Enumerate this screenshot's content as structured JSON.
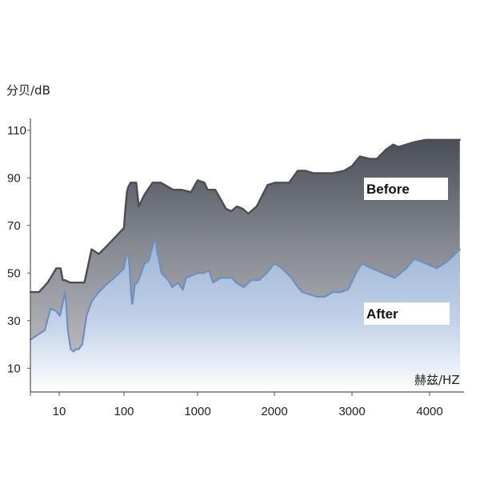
{
  "chart_data": {
    "type": "area",
    "ylabel": "分贝/dB",
    "xlabel": "赫兹/HZ",
    "ylim": [
      0,
      115
    ],
    "yticks": [
      10,
      30,
      50,
      70,
      90,
      110
    ],
    "xlim": [
      0,
      4500
    ],
    "xticks": [
      {
        "value": 10,
        "label": "10"
      },
      {
        "value": 100,
        "label": "100"
      },
      {
        "value": 1000,
        "label": "1000"
      },
      {
        "value": 2000,
        "label": "2000"
      },
      {
        "value": 3000,
        "label": "3000"
      },
      {
        "value": 4000,
        "label": "4000"
      }
    ],
    "grid": false,
    "series": [
      {
        "name": "Before",
        "label_placement": "upper-right",
        "points": [
          [
            0,
            42
          ],
          [
            3,
            42
          ],
          [
            6,
            46
          ],
          [
            9,
            52
          ],
          [
            12,
            52
          ],
          [
            15,
            47
          ],
          [
            18,
            47
          ],
          [
            25,
            46
          ],
          [
            40,
            46
          ],
          [
            45,
            46
          ],
          [
            55,
            60
          ],
          [
            65,
            58
          ],
          [
            75,
            61
          ],
          [
            100,
            69
          ],
          [
            110,
            74
          ],
          [
            120,
            78
          ],
          [
            135,
            84
          ],
          [
            150,
            86
          ],
          [
            180,
            88
          ],
          [
            250,
            88
          ],
          [
            280,
            78
          ],
          [
            350,
            83
          ],
          [
            450,
            88
          ],
          [
            550,
            88
          ],
          [
            700,
            85
          ],
          [
            800,
            85
          ],
          [
            920,
            84
          ],
          [
            1000,
            89
          ],
          [
            1090,
            88
          ],
          [
            1130,
            85
          ],
          [
            1230,
            85
          ],
          [
            1370,
            77
          ],
          [
            1440,
            76
          ],
          [
            1510,
            78
          ],
          [
            1590,
            77
          ],
          [
            1660,
            75
          ],
          [
            1770,
            78
          ],
          [
            1910,
            87
          ],
          [
            2010,
            88
          ],
          [
            2190,
            88
          ],
          [
            2300,
            93
          ],
          [
            2400,
            93
          ],
          [
            2500,
            92
          ],
          [
            2600,
            92
          ],
          [
            2750,
            92
          ],
          [
            2900,
            93
          ],
          [
            3000,
            95
          ],
          [
            3100,
            99
          ],
          [
            3230,
            98
          ],
          [
            3320,
            98
          ],
          [
            3440,
            102
          ],
          [
            3530,
            104
          ],
          [
            3600,
            103
          ],
          [
            3700,
            104
          ],
          [
            3800,
            105
          ],
          [
            3950,
            106
          ],
          [
            4100,
            106
          ],
          [
            4250,
            106
          ],
          [
            4420,
            106
          ]
        ]
      },
      {
        "name": "After",
        "label_placement": "lower-right",
        "points": [
          [
            0,
            22
          ],
          [
            5,
            26
          ],
          [
            7,
            35
          ],
          [
            9,
            34
          ],
          [
            11,
            32
          ],
          [
            14,
            36
          ],
          [
            18,
            42
          ],
          [
            20,
            36
          ],
          [
            22,
            26
          ],
          [
            26,
            18
          ],
          [
            30,
            17
          ],
          [
            33,
            18
          ],
          [
            37,
            18
          ],
          [
            42,
            20
          ],
          [
            48,
            32
          ],
          [
            55,
            38
          ],
          [
            65,
            42
          ],
          [
            75,
            45
          ],
          [
            90,
            49
          ],
          [
            100,
            52
          ],
          [
            115,
            55
          ],
          [
            130,
            58
          ],
          [
            150,
            58
          ],
          [
            165,
            54
          ],
          [
            175,
            48
          ],
          [
            190,
            40
          ],
          [
            200,
            37
          ],
          [
            215,
            40
          ],
          [
            230,
            45
          ],
          [
            260,
            46
          ],
          [
            290,
            48
          ],
          [
            330,
            52
          ],
          [
            350,
            54
          ],
          [
            400,
            55
          ],
          [
            440,
            60
          ],
          [
            480,
            65
          ],
          [
            510,
            58
          ],
          [
            560,
            50
          ],
          [
            640,
            47
          ],
          [
            690,
            44
          ],
          [
            760,
            46
          ],
          [
            820,
            43
          ],
          [
            860,
            48
          ],
          [
            930,
            49
          ],
          [
            1000,
            50
          ],
          [
            1080,
            50
          ],
          [
            1150,
            51
          ],
          [
            1200,
            46
          ],
          [
            1300,
            48
          ],
          [
            1350,
            48
          ],
          [
            1450,
            48
          ],
          [
            1500,
            46
          ],
          [
            1600,
            44
          ],
          [
            1700,
            47
          ],
          [
            1800,
            47
          ],
          [
            1900,
            50
          ],
          [
            2000,
            54
          ],
          [
            2100,
            52
          ],
          [
            2220,
            48
          ],
          [
            2280,
            45
          ],
          [
            2360,
            42
          ],
          [
            2450,
            41
          ],
          [
            2550,
            40
          ],
          [
            2650,
            40
          ],
          [
            2750,
            42
          ],
          [
            2850,
            42
          ],
          [
            2950,
            43
          ],
          [
            3050,
            50
          ],
          [
            3130,
            54
          ],
          [
            3250,
            52
          ],
          [
            3400,
            50
          ],
          [
            3550,
            48
          ],
          [
            3700,
            52
          ],
          [
            3800,
            56
          ],
          [
            3950,
            54
          ],
          [
            4100,
            52
          ],
          [
            4250,
            55
          ],
          [
            4420,
            60
          ]
        ]
      }
    ]
  }
}
